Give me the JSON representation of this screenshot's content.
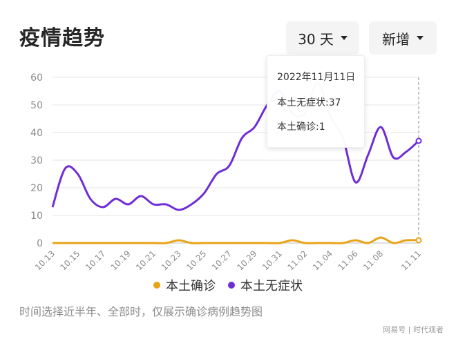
{
  "header": {
    "title": "疫情趋势"
  },
  "controls": {
    "range_label": "30 天",
    "type_label": "新增"
  },
  "tooltip": {
    "date": "2022年11月11日",
    "line1": "本土无症状:37",
    "line2": "本土确诊:1"
  },
  "legend": {
    "confirmed": "本土确诊",
    "asymptomatic": "本土无症状"
  },
  "footer": {
    "note": "时间选择近半年、全部时，仅展示确诊病例趋势图",
    "source": "网易号 | 时代观者"
  },
  "colors": {
    "confirmed": "#e8a317",
    "asymptomatic": "#6f2dd6",
    "grid": "#e6e6e6",
    "axis": "#8a8a8a"
  },
  "chart_data": {
    "type": "line",
    "x": [
      "10.13",
      "10.14",
      "10.15",
      "10.16",
      "10.17",
      "10.18",
      "10.19",
      "10.20",
      "10.21",
      "10.22",
      "10.23",
      "10.24",
      "10.25",
      "10.26",
      "10.27",
      "10.28",
      "10.29",
      "10.30",
      "10.31",
      "11.01",
      "11.02",
      "11.03",
      "11.04",
      "11.05",
      "11.06",
      "11.07",
      "11.08",
      "11.09",
      "11.10",
      "11.11"
    ],
    "xticks": [
      "10.13",
      "10.15",
      "10.17",
      "10.19",
      "10.21",
      "10.23",
      "10.25",
      "10.27",
      "10.29",
      "10.31",
      "11.02",
      "11.04",
      "11.06",
      "11.08",
      "11.11"
    ],
    "yticks": [
      0,
      10,
      20,
      30,
      40,
      50,
      60
    ],
    "ylim": [
      0,
      60
    ],
    "series": [
      {
        "name": "本土确诊",
        "values": [
          0,
          0,
          0,
          0,
          0,
          0,
          0,
          0,
          0,
          0,
          1,
          0,
          0,
          0,
          0,
          0,
          0,
          0,
          0,
          1,
          0,
          0,
          0,
          0,
          1,
          0,
          2,
          0,
          1,
          1
        ]
      },
      {
        "name": "本土无症状",
        "values": [
          13,
          27,
          25,
          16,
          13,
          16,
          14,
          17,
          14,
          14,
          12,
          14,
          18,
          25,
          28,
          38,
          42,
          50,
          55,
          47,
          47,
          58,
          46,
          38,
          22,
          32,
          42,
          31,
          33,
          37
        ]
      }
    ]
  }
}
